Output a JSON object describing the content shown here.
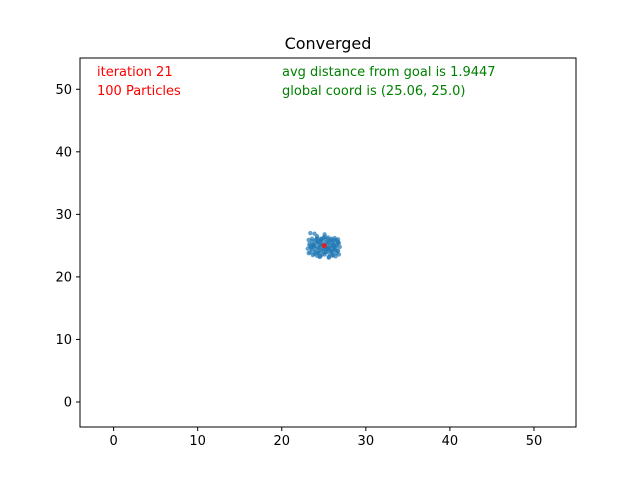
{
  "chart_data": {
    "type": "scatter",
    "title": "Converged",
    "xlabel": "",
    "ylabel": "",
    "xlim": [
      -4,
      55
    ],
    "ylim": [
      -4,
      55
    ],
    "xticks": [
      0,
      10,
      20,
      30,
      40,
      50
    ],
    "yticks": [
      0,
      10,
      20,
      30,
      40,
      50
    ],
    "grid": false,
    "annotations": {
      "iteration": "iteration 21",
      "particles": "100 Particles",
      "avg_distance": "avg distance from goal is 1.9447",
      "global_coord": "global coord is (25.06, 25.0)"
    },
    "colors": {
      "particles": "#1f77b4",
      "goal": "#d62728",
      "red_text": "#ff0000",
      "green_text": "#008000"
    },
    "goal": {
      "x": 25.06,
      "y": 25.0
    },
    "particles": {
      "x": [
        23.4,
        23.9,
        24.2,
        24.6,
        25.1,
        25.5,
        25.9,
        26.3,
        26.7,
        23.2,
        23.6,
        24.0,
        24.4,
        24.8,
        25.3,
        25.7,
        26.1,
        26.5,
        26.8,
        23.3,
        23.7,
        24.1,
        24.5,
        24.9,
        25.4,
        25.8,
        26.2,
        26.6,
        23.5,
        23.8,
        24.3,
        24.7,
        25.2,
        25.6,
        26.0,
        26.4,
        26.9,
        23.1,
        23.6,
        24.0,
        24.5,
        25.0,
        25.5,
        25.9,
        26.3,
        26.7,
        23.4,
        23.9,
        24.3,
        24.8,
        25.2,
        25.7,
        26.1,
        26.5,
        23.2,
        23.7,
        24.2,
        24.6,
        25.1,
        25.6,
        26.0,
        26.4,
        26.8,
        23.5,
        24.0,
        24.4,
        24.9,
        25.3,
        25.8,
        26.2,
        26.6,
        23.3,
        23.8,
        24.3,
        24.7,
        25.2,
        25.6,
        26.1,
        26.5,
        23.6,
        24.1,
        24.6,
        25.0,
        25.5,
        25.9,
        26.3,
        26.7,
        23.9,
        24.4,
        24.8,
        25.3,
        25.7,
        26.2,
        24.2,
        24.7,
        25.1,
        25.6,
        26.0,
        24.5,
        25.4
      ],
      "y": [
        27.0,
        26.9,
        26.2,
        26.0,
        26.8,
        26.3,
        26.1,
        25.9,
        26.0,
        25.9,
        25.7,
        25.8,
        25.6,
        25.9,
        25.5,
        25.7,
        25.6,
        25.8,
        25.4,
        25.3,
        25.2,
        25.4,
        25.1,
        25.3,
        25.2,
        25.0,
        25.1,
        25.3,
        24.8,
        24.9,
        24.7,
        24.9,
        24.8,
        24.6,
        24.9,
        24.7,
        24.8,
        24.5,
        24.3,
        24.4,
        24.2,
        24.5,
        24.3,
        24.1,
        24.4,
        24.2,
        23.9,
        23.7,
        23.8,
        23.6,
        23.9,
        23.7,
        23.5,
        23.8,
        23.8,
        23.5,
        23.4,
        23.3,
        23.6,
        23.2,
        23.4,
        23.3,
        23.6,
        24.6,
        24.0,
        23.9,
        24.1,
        24.0,
        24.2,
        24.3,
        24.1,
        25.0,
        25.1,
        25.5,
        25.2,
        25.9,
        25.4,
        25.3,
        25.0,
        26.1,
        26.0,
        25.8,
        26.3,
        26.0,
        25.9,
        26.2,
        25.6,
        24.9,
        24.6,
        24.4,
        24.5,
        24.6,
        24.7,
        26.5,
        26.1,
        26.4,
        23.1,
        23.9,
        23.2,
        24.6
      ]
    }
  }
}
